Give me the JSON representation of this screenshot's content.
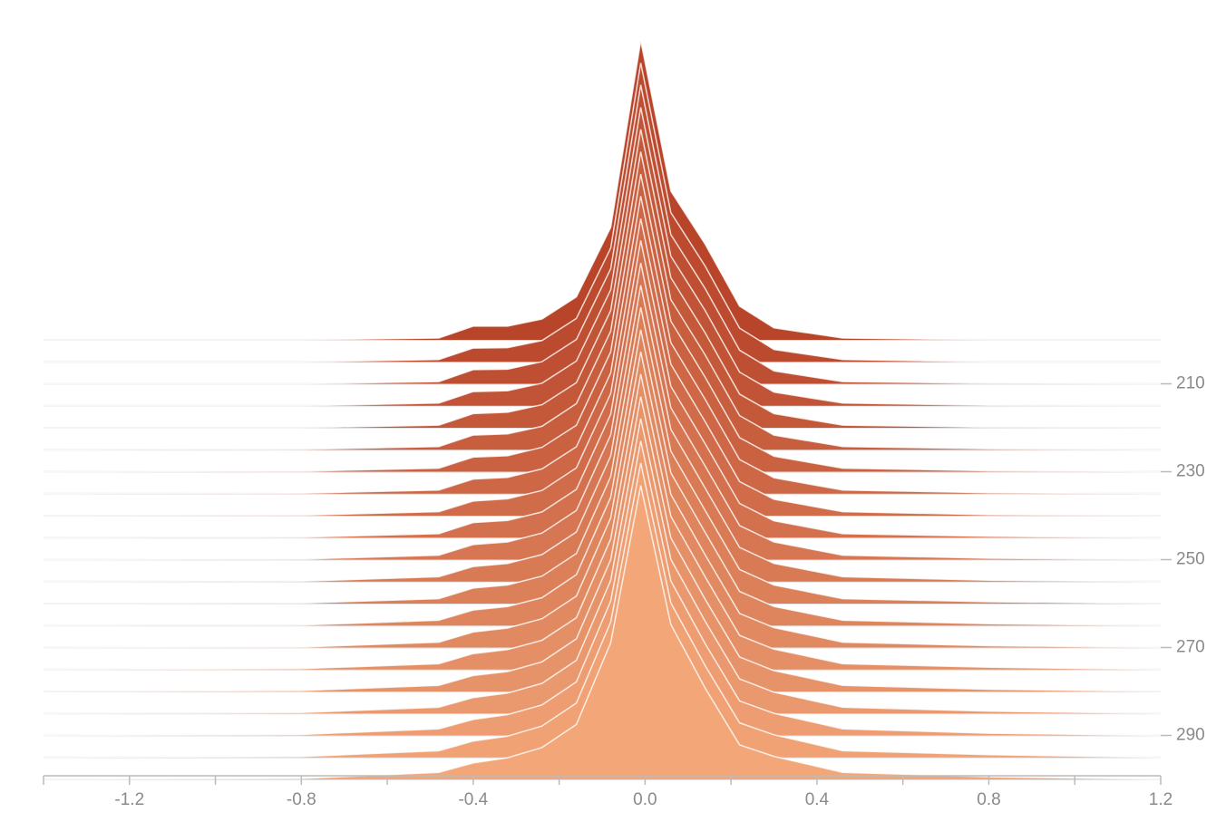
{
  "chart_data": {
    "type": "ridgeline",
    "x": [
      -1.4,
      -0.8,
      -0.48,
      -0.4,
      -0.32,
      -0.24,
      -0.16,
      -0.08,
      -0.01,
      0.06,
      0.14,
      0.22,
      0.3,
      0.46,
      0.8,
      1.2
    ],
    "series": [
      {
        "step": 200,
        "values": [
          0,
          0,
          0.4,
          3.1,
          3.1,
          4.7,
          9.7,
          25.4,
          67.6,
          33.6,
          21.6,
          7.6,
          2.7,
          0.4,
          0,
          0
        ]
      },
      {
        "step": 205,
        "values": [
          0,
          0,
          0.5,
          3.1,
          3.2,
          4.8,
          9.8,
          25.7,
          67.5,
          33.7,
          21.6,
          7.6,
          2.8,
          0.5,
          0,
          0
        ]
      },
      {
        "step": 210,
        "values": [
          0,
          0,
          0.5,
          3.2,
          3.3,
          5.0,
          10.0,
          26.0,
          67.5,
          33.7,
          21.5,
          7.6,
          2.9,
          0.5,
          0.1,
          0
        ]
      },
      {
        "step": 215,
        "values": [
          0,
          0,
          0.6,
          3.2,
          3.4,
          5.1,
          10.1,
          26.2,
          67.4,
          33.8,
          21.5,
          7.6,
          3.1,
          0.6,
          0.1,
          0
        ]
      },
      {
        "step": 220,
        "values": [
          0,
          0,
          0.6,
          3.2,
          3.5,
          5.2,
          10.2,
          26.5,
          67.4,
          33.9,
          21.4,
          7.6,
          3.2,
          0.6,
          0.1,
          0
        ]
      },
      {
        "step": 225,
        "values": [
          0,
          0.1,
          0.7,
          3.3,
          3.6,
          5.3,
          10.4,
          26.8,
          67.3,
          33.9,
          21.4,
          7.7,
          3.3,
          0.7,
          0.2,
          0
        ]
      },
      {
        "step": 230,
        "values": [
          0,
          0.1,
          0.8,
          3.3,
          3.6,
          5.5,
          10.5,
          27.1,
          67.2,
          34.0,
          21.3,
          7.7,
          3.5,
          0.8,
          0.2,
          0
        ]
      },
      {
        "step": 235,
        "values": [
          0,
          0.1,
          0.8,
          3.3,
          3.7,
          5.6,
          10.6,
          27.3,
          67.2,
          34.1,
          21.3,
          7.7,
          3.6,
          0.8,
          0.2,
          0
        ]
      },
      {
        "step": 240,
        "values": [
          0,
          0.1,
          0.9,
          3.3,
          3.8,
          5.7,
          10.8,
          27.6,
          67.1,
          34.2,
          21.2,
          7.7,
          3.7,
          0.9,
          0.2,
          0
        ]
      },
      {
        "step": 245,
        "values": [
          0,
          0.1,
          0.9,
          3.4,
          3.9,
          5.8,
          10.9,
          27.9,
          67.1,
          34.2,
          21.2,
          7.7,
          3.8,
          0.9,
          0.3,
          0
        ]
      },
      {
        "step": 250,
        "values": [
          0,
          0.1,
          1.0,
          3.4,
          4.0,
          6.0,
          11.1,
          28.2,
          67.0,
          34.3,
          21.1,
          7.7,
          4.0,
          1.0,
          0.3,
          0
        ]
      },
      {
        "step": 255,
        "values": [
          0,
          0.1,
          1.1,
          3.4,
          4.1,
          6.1,
          11.2,
          28.4,
          66.9,
          34.4,
          21.1,
          7.7,
          4.1,
          1.1,
          0.3,
          0
        ]
      },
      {
        "step": 260,
        "values": [
          0,
          0.1,
          1.1,
          3.5,
          4.2,
          6.2,
          11.3,
          28.7,
          66.9,
          34.4,
          21.0,
          7.7,
          4.2,
          1.1,
          0.4,
          0
        ]
      },
      {
        "step": 265,
        "values": [
          0,
          0.1,
          1.2,
          3.5,
          4.3,
          6.3,
          11.5,
          29.0,
          66.8,
          34.5,
          21.0,
          7.7,
          4.3,
          1.2,
          0.4,
          0
        ]
      },
      {
        "step": 270,
        "values": [
          0,
          0.1,
          1.2,
          3.5,
          4.4,
          6.5,
          11.6,
          29.3,
          66.8,
          34.6,
          20.9,
          7.7,
          4.5,
          1.2,
          0.4,
          0
        ]
      },
      {
        "step": 275,
        "values": [
          0,
          0.2,
          1.3,
          3.6,
          4.5,
          6.6,
          11.7,
          29.5,
          66.7,
          34.6,
          20.9,
          7.7,
          4.6,
          1.3,
          0.5,
          0
        ]
      },
      {
        "step": 280,
        "values": [
          0,
          0.2,
          1.4,
          3.6,
          4.5,
          6.7,
          11.9,
          29.8,
          66.6,
          34.7,
          20.8,
          7.8,
          4.7,
          1.4,
          0.5,
          0
        ]
      },
      {
        "step": 285,
        "values": [
          0,
          0.2,
          1.4,
          3.6,
          4.6,
          6.8,
          12.0,
          30.1,
          66.6,
          34.8,
          20.8,
          7.8,
          4.8,
          1.4,
          0.5,
          0
        ]
      },
      {
        "step": 290,
        "values": [
          0,
          0.2,
          1.5,
          3.6,
          4.7,
          6.9,
          12.1,
          30.4,
          66.5,
          34.9,
          20.7,
          7.8,
          5.0,
          1.5,
          0.5,
          0
        ]
      },
      {
        "step": 295,
        "values": [
          0,
          0.2,
          1.5,
          3.7,
          4.8,
          7.1,
          12.3,
          30.6,
          66.5,
          34.9,
          20.7,
          7.8,
          5.1,
          1.5,
          0.6,
          0
        ]
      },
      {
        "step": 300,
        "values": [
          0,
          0.2,
          1.6,
          3.7,
          4.9,
          7.2,
          12.4,
          30.9,
          66.4,
          35.0,
          20.6,
          7.8,
          5.2,
          1.6,
          0.6,
          0
        ]
      }
    ],
    "xlim": [
      -1.4,
      1.2
    ],
    "xticks": [
      -1.2,
      -0.8,
      -0.4,
      {
        "value": 0,
        "label": "0.0"
      },
      0.4,
      0.8,
      1.2
    ],
    "xminorticks": [
      -1.4,
      -1.0,
      -0.6,
      -0.2,
      0.2,
      0.6,
      1.0
    ],
    "ylim": [
      200,
      300
    ],
    "yticks": [
      210,
      230,
      250,
      270,
      290
    ],
    "zlim": [
      0,
      70
    ],
    "color_start": "#b8452a",
    "color_end": "#f3a779"
  }
}
